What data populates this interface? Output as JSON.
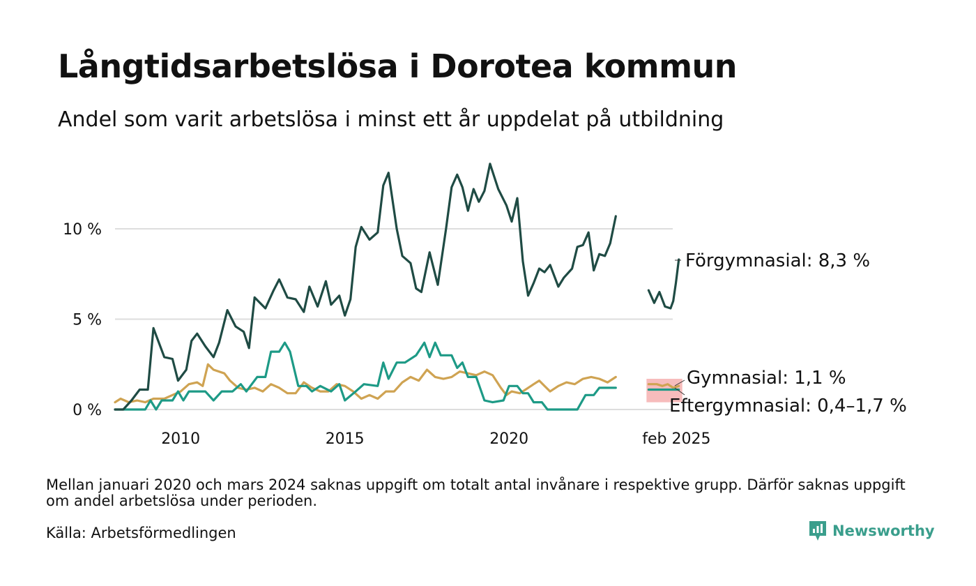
{
  "title": "Långtidsarbetslösa i Dorotea kommun",
  "subtitle": "Andel som varit arbetslösa i minst ett år uppdelat på utbildning",
  "note": "Mellan januari 2020 och mars 2024 saknas uppgift om totalt antal invånare i respektive grupp. Därför saknas uppgift om andel arbetslösa under perioden.",
  "source": "Källa: Arbetsförmedlingen",
  "brand": "Newsworthy",
  "colors": {
    "forgymnasial": "#1f4b44",
    "gymnasial": "#1d9a86",
    "eftergymnasial": "#cfa352",
    "range_band": "#f4a6a6",
    "grid": "#dddddd",
    "brand": "#3a9e8c"
  },
  "chart_data": {
    "type": "line",
    "title": "Långtidsarbetslösa i Dorotea kommun",
    "ylabel": "",
    "ylim": [
      0,
      14
    ],
    "y_ticks": [
      0,
      5,
      10
    ],
    "y_tick_labels": [
      "0 %",
      "5 %",
      "10 %"
    ],
    "x_ticks": [
      2010,
      2015,
      2020,
      2025.1
    ],
    "x_tick_labels": [
      "2010",
      "2015",
      "2020",
      "feb 2025"
    ],
    "grid": "horizontal",
    "series": [
      {
        "name": "Förgymnasial",
        "color": "#1f4b44",
        "end_label": "Förgymnasial: 8,3 %",
        "segments": [
          [
            [
              2008.0,
              0
            ],
            [
              2008.25,
              0
            ],
            [
              2008.5,
              0.5
            ],
            [
              2008.75,
              1.1
            ],
            [
              2009.0,
              1.1
            ],
            [
              2009.17,
              4.5
            ],
            [
              2009.5,
              2.9
            ],
            [
              2009.75,
              2.8
            ],
            [
              2009.92,
              1.6
            ],
            [
              2010.17,
              2.2
            ],
            [
              2010.33,
              3.8
            ],
            [
              2010.5,
              4.2
            ],
            [
              2010.75,
              3.5
            ],
            [
              2011.0,
              2.9
            ],
            [
              2011.17,
              3.7
            ],
            [
              2011.42,
              5.5
            ],
            [
              2011.67,
              4.6
            ],
            [
              2011.92,
              4.3
            ],
            [
              2012.08,
              3.4
            ],
            [
              2012.25,
              6.2
            ],
            [
              2012.58,
              5.6
            ],
            [
              2012.83,
              6.6
            ],
            [
              2013.0,
              7.2
            ],
            [
              2013.25,
              6.2
            ],
            [
              2013.5,
              6.1
            ],
            [
              2013.75,
              5.4
            ],
            [
              2013.92,
              6.8
            ],
            [
              2014.17,
              5.7
            ],
            [
              2014.42,
              7.1
            ],
            [
              2014.58,
              5.8
            ],
            [
              2014.83,
              6.3
            ],
            [
              2015.0,
              5.2
            ],
            [
              2015.17,
              6.1
            ],
            [
              2015.33,
              9.0
            ],
            [
              2015.5,
              10.1
            ],
            [
              2015.75,
              9.4
            ],
            [
              2016.0,
              9.8
            ],
            [
              2016.17,
              12.4
            ],
            [
              2016.33,
              13.1
            ],
            [
              2016.58,
              10.0
            ],
            [
              2016.75,
              8.5
            ],
            [
              2017.0,
              8.1
            ],
            [
              2017.17,
              6.7
            ],
            [
              2017.33,
              6.5
            ],
            [
              2017.58,
              8.7
            ],
            [
              2017.83,
              6.9
            ],
            [
              2018.08,
              10.0
            ],
            [
              2018.25,
              12.3
            ],
            [
              2018.42,
              13.0
            ],
            [
              2018.58,
              12.3
            ],
            [
              2018.75,
              11.0
            ],
            [
              2018.92,
              12.2
            ],
            [
              2019.08,
              11.5
            ],
            [
              2019.25,
              12.1
            ],
            [
              2019.42,
              13.6
            ],
            [
              2019.67,
              12.2
            ],
            [
              2019.92,
              11.3
            ],
            [
              2020.08,
              10.4
            ],
            [
              2020.25,
              11.7
            ],
            [
              2020.42,
              8.2
            ],
            [
              2020.58,
              6.3
            ],
            [
              2020.75,
              7.0
            ],
            [
              2020.92,
              7.8
            ],
            [
              2021.08,
              7.6
            ],
            [
              2021.25,
              8.0
            ],
            [
              2021.5,
              6.8
            ],
            [
              2021.67,
              7.3
            ],
            [
              2021.92,
              7.8
            ],
            [
              2022.08,
              9.0
            ],
            [
              2022.25,
              9.1
            ],
            [
              2022.42,
              9.8
            ],
            [
              2022.58,
              7.7
            ],
            [
              2022.75,
              8.6
            ],
            [
              2022.92,
              8.5
            ],
            [
              2023.08,
              9.2
            ],
            [
              2023.25,
              10.7
            ]
          ],
          [
            [
              2024.25,
              6.6
            ],
            [
              2024.42,
              5.9
            ],
            [
              2024.58,
              6.5
            ],
            [
              2024.75,
              5.7
            ],
            [
              2024.92,
              5.6
            ],
            [
              2025.0,
              6.0
            ],
            [
              2025.08,
              7.0
            ],
            [
              2025.17,
              8.3
            ]
          ]
        ]
      },
      {
        "name": "Gymnasial",
        "color": "#1d9a86",
        "end_label": "Gymnasial: 1,1 %",
        "segments": [
          [
            [
              2008.0,
              0
            ],
            [
              2008.5,
              0
            ],
            [
              2008.92,
              0
            ],
            [
              2009.08,
              0.5
            ],
            [
              2009.25,
              0
            ],
            [
              2009.42,
              0.5
            ],
            [
              2009.75,
              0.5
            ],
            [
              2009.92,
              1.0
            ],
            [
              2010.08,
              0.5
            ],
            [
              2010.25,
              1.0
            ],
            [
              2010.75,
              1.0
            ],
            [
              2011.0,
              0.5
            ],
            [
              2011.25,
              1.0
            ],
            [
              2011.58,
              1.0
            ],
            [
              2011.83,
              1.4
            ],
            [
              2012.0,
              1.0
            ],
            [
              2012.33,
              1.8
            ],
            [
              2012.58,
              1.8
            ],
            [
              2012.75,
              3.2
            ],
            [
              2013.0,
              3.2
            ],
            [
              2013.17,
              3.7
            ],
            [
              2013.33,
              3.2
            ],
            [
              2013.58,
              1.3
            ],
            [
              2013.83,
              1.3
            ],
            [
              2014.0,
              1.0
            ],
            [
              2014.25,
              1.3
            ],
            [
              2014.58,
              1.0
            ],
            [
              2014.83,
              1.4
            ],
            [
              2015.0,
              0.5
            ],
            [
              2015.33,
              1.0
            ],
            [
              2015.58,
              1.4
            ],
            [
              2016.0,
              1.3
            ],
            [
              2016.17,
              2.6
            ],
            [
              2016.33,
              1.7
            ],
            [
              2016.58,
              2.6
            ],
            [
              2016.83,
              2.6
            ],
            [
              2017.17,
              3.0
            ],
            [
              2017.42,
              3.7
            ],
            [
              2017.58,
              2.9
            ],
            [
              2017.75,
              3.7
            ],
            [
              2017.92,
              3.0
            ],
            [
              2018.25,
              3.0
            ],
            [
              2018.42,
              2.3
            ],
            [
              2018.58,
              2.6
            ],
            [
              2018.75,
              1.8
            ],
            [
              2019.0,
              1.8
            ],
            [
              2019.25,
              0.5
            ],
            [
              2019.5,
              0.4
            ],
            [
              2019.83,
              0.5
            ],
            [
              2020.0,
              1.3
            ],
            [
              2020.25,
              1.3
            ],
            [
              2020.42,
              0.9
            ],
            [
              2020.58,
              0.9
            ],
            [
              2020.75,
              0.4
            ],
            [
              2021.0,
              0.4
            ],
            [
              2021.17,
              0
            ],
            [
              2021.5,
              0
            ],
            [
              2021.83,
              0
            ],
            [
              2022.08,
              0
            ],
            [
              2022.33,
              0.8
            ],
            [
              2022.58,
              0.8
            ],
            [
              2022.75,
              1.2
            ],
            [
              2023.25,
              1.2
            ]
          ],
          [
            [
              2024.25,
              1.1
            ],
            [
              2024.58,
              1.1
            ],
            [
              2024.83,
              1.1
            ],
            [
              2025.17,
              1.1
            ]
          ]
        ]
      },
      {
        "name": "Eftergymnasial",
        "color": "#cfa352",
        "end_label": "Eftergymnasial: 0,4–1,7 %",
        "range": [
          0.4,
          1.7
        ],
        "segments": [
          [
            [
              2008.0,
              0.4
            ],
            [
              2008.17,
              0.6
            ],
            [
              2008.42,
              0.4
            ],
            [
              2008.67,
              0.5
            ],
            [
              2008.92,
              0.4
            ],
            [
              2009.17,
              0.6
            ],
            [
              2009.5,
              0.6
            ],
            [
              2009.75,
              0.8
            ],
            [
              2010.0,
              1.0
            ],
            [
              2010.25,
              1.4
            ],
            [
              2010.5,
              1.5
            ],
            [
              2010.67,
              1.3
            ],
            [
              2010.83,
              2.5
            ],
            [
              2011.0,
              2.2
            ],
            [
              2011.33,
              2.0
            ],
            [
              2011.5,
              1.6
            ],
            [
              2011.75,
              1.2
            ],
            [
              2012.0,
              1.1
            ],
            [
              2012.25,
              1.2
            ],
            [
              2012.5,
              1.0
            ],
            [
              2012.75,
              1.4
            ],
            [
              2013.0,
              1.2
            ],
            [
              2013.25,
              0.9
            ],
            [
              2013.5,
              0.9
            ],
            [
              2013.75,
              1.5
            ],
            [
              2014.0,
              1.2
            ],
            [
              2014.25,
              1.0
            ],
            [
              2014.5,
              1.0
            ],
            [
              2014.75,
              1.4
            ],
            [
              2015.0,
              1.3
            ],
            [
              2015.25,
              1.0
            ],
            [
              2015.5,
              0.6
            ],
            [
              2015.75,
              0.8
            ],
            [
              2016.0,
              0.6
            ],
            [
              2016.25,
              1.0
            ],
            [
              2016.5,
              1.0
            ],
            [
              2016.75,
              1.5
            ],
            [
              2017.0,
              1.8
            ],
            [
              2017.25,
              1.6
            ],
            [
              2017.5,
              2.2
            ],
            [
              2017.75,
              1.8
            ],
            [
              2018.0,
              1.7
            ],
            [
              2018.25,
              1.8
            ],
            [
              2018.5,
              2.1
            ],
            [
              2018.75,
              2.0
            ],
            [
              2019.0,
              1.9
            ],
            [
              2019.25,
              2.1
            ],
            [
              2019.5,
              1.9
            ],
            [
              2019.75,
              1.2
            ],
            [
              2019.92,
              0.8
            ],
            [
              2020.08,
              1.0
            ],
            [
              2020.33,
              0.9
            ],
            [
              2020.5,
              1.1
            ],
            [
              2020.75,
              1.4
            ],
            [
              2020.92,
              1.6
            ],
            [
              2021.08,
              1.3
            ],
            [
              2021.25,
              1.0
            ],
            [
              2021.5,
              1.3
            ],
            [
              2021.75,
              1.5
            ],
            [
              2022.0,
              1.4
            ],
            [
              2022.25,
              1.7
            ],
            [
              2022.5,
              1.8
            ],
            [
              2022.75,
              1.7
            ],
            [
              2023.0,
              1.5
            ],
            [
              2023.25,
              1.8
            ]
          ],
          [
            [
              2024.25,
              1.4
            ],
            [
              2024.5,
              1.4
            ],
            [
              2024.67,
              1.3
            ],
            [
              2024.83,
              1.4
            ],
            [
              2025.0,
              1.2
            ],
            [
              2025.17,
              1.3
            ]
          ]
        ]
      }
    ]
  }
}
